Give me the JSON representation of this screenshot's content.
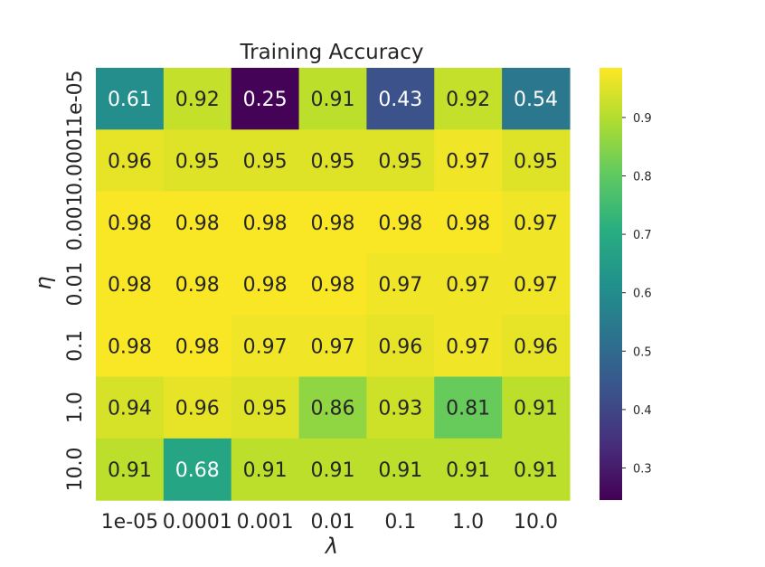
{
  "chart_data": {
    "type": "heatmap",
    "title": "Training Accuracy",
    "xlabel": "λ",
    "ylabel": "η",
    "x_categories": [
      "1e-05",
      "0.0001",
      "0.001",
      "0.01",
      "0.1",
      "1.0",
      "10.0"
    ],
    "y_categories": [
      "1e-05",
      "0.0001",
      "0.001",
      "0.01",
      "0.1",
      "1.0",
      "10.0"
    ],
    "values": [
      [
        0.61,
        0.92,
        0.25,
        0.91,
        0.43,
        0.92,
        0.54
      ],
      [
        0.96,
        0.95,
        0.95,
        0.95,
        0.95,
        0.97,
        0.95
      ],
      [
        0.98,
        0.98,
        0.98,
        0.98,
        0.98,
        0.98,
        0.97
      ],
      [
        0.98,
        0.98,
        0.98,
        0.98,
        0.97,
        0.97,
        0.97
      ],
      [
        0.98,
        0.98,
        0.97,
        0.97,
        0.96,
        0.97,
        0.96
      ],
      [
        0.94,
        0.96,
        0.95,
        0.86,
        0.93,
        0.81,
        0.91
      ],
      [
        0.91,
        0.68,
        0.91,
        0.91,
        0.91,
        0.91,
        0.91
      ]
    ],
    "colormap": "viridis",
    "vmin": 0.245,
    "vmax": 0.985,
    "colorbar_ticks": [
      "0.3",
      "0.4",
      "0.5",
      "0.6",
      "0.7",
      "0.8",
      "0.9"
    ],
    "colors": {
      "text": "#262626",
      "annotation_light": "#ffffff",
      "annotation_dark": "#262626"
    }
  }
}
